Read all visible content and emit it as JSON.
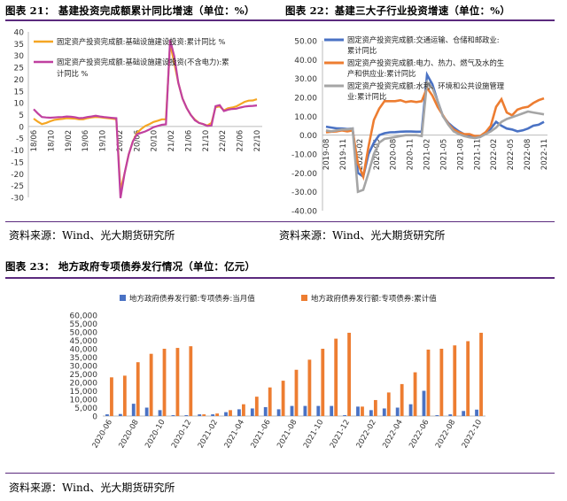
{
  "headers": {
    "fig21": "图表 21： 基建投资完成额累计同比增速（单位：%）",
    "fig22": "图表 22：基建三大子行业投资增速（单位：%）",
    "fig23": "图表 23： 地方政府专项债券发行情况（单位：亿元）"
  },
  "sources": {
    "s1": "资料来源：Wind、光大期货研究所",
    "s2": "资料来源：Wind、光大期货研究所",
    "s3": "资料来源：Wind、光大期货研究所"
  },
  "colors": {
    "orange": "#f5a623",
    "magenta": "#c040a0",
    "blue": "#4a72c4",
    "orange2": "#ed7d31",
    "gray": "#a5a5a5",
    "rule": "#5b2a7e"
  },
  "chart_data": [
    {
      "id": "c21",
      "type": "line",
      "ylim": [
        -30,
        40
      ],
      "yticks": [
        -30,
        -25,
        -20,
        -15,
        -10,
        -5,
        0,
        5,
        10,
        15,
        20,
        25,
        30,
        35,
        40
      ],
      "xticks": [
        "18/06",
        "18/10",
        "19/02",
        "19/06",
        "19/10",
        "20/02",
        "20/06",
        "20/10",
        "21/02",
        "21/06",
        "21/10",
        "22/02",
        "22/06",
        "22/10"
      ],
      "series": [
        {
          "name": "固定资产投资完成额:基础设施建设投资:累计同比 %",
          "color": "#f5a623",
          "values": [
            3.3,
            2.0,
            1.0,
            1.5,
            2.2,
            2.8,
            3.0,
            3.2,
            3.5,
            3.4,
            3.3,
            3.0,
            3.0,
            3.5,
            3.8,
            4.0,
            3.9,
            3.7,
            3.5,
            3.3,
            3.0,
            -26.9,
            -19.7,
            -11.8,
            -6.3,
            -2.7,
            -1.1,
            0.2,
            1.0,
            1.9,
            2.4,
            3.0,
            3.0,
            35.0,
            26.9,
            18.4,
            11.8,
            7.8,
            4.9,
            2.9,
            1.5,
            1.0,
            0.4,
            1.5,
            8.1,
            8.5,
            6.8,
            7.7,
            8.0,
            8.5,
            9.4,
            10.4,
            10.9,
            11.0,
            11.5
          ]
        },
        {
          "name": "固定资产投资完成额:基础设施建设投资(不含电力):累计同比 %",
          "color": "#c040a0",
          "values": [
            7.3,
            5.5,
            4.0,
            3.8,
            3.7,
            3.8,
            3.9,
            4.0,
            4.2,
            4.1,
            3.9,
            3.5,
            3.6,
            4.0,
            4.2,
            4.5,
            4.2,
            4.0,
            3.8,
            3.6,
            3.5,
            -30.3,
            -19.7,
            -11.8,
            -6.3,
            -3.3,
            -2.7,
            -2.1,
            -1.3,
            -0.3,
            0.2,
            0.7,
            0.9,
            36.6,
            29.7,
            18.4,
            11.8,
            7.8,
            4.9,
            2.6,
            1.5,
            1.0,
            0.2,
            0.4,
            8.6,
            9.0,
            6.5,
            7.1,
            7.4,
            7.5,
            8.0,
            8.4,
            8.6,
            8.7,
            8.9
          ]
        }
      ]
    },
    {
      "id": "c22",
      "type": "line",
      "ylim": [
        -40,
        50
      ],
      "yticks": [
        "50.00",
        "40.00",
        "30.00",
        "20.00",
        "10.00",
        "0.00",
        "-10.00",
        "-20.00",
        "-30.00",
        "-40.00"
      ],
      "xticks": [
        "2019-08",
        "2019-11",
        "2020-02",
        "2020-05",
        "2020-08",
        "2020-11",
        "2021-02",
        "2021-05",
        "2021-08",
        "2021-11",
        "2022-02",
        "2022-05",
        "2022-08",
        "2022-11"
      ],
      "series": [
        {
          "name": "固定资产投资完成额:交通运输、仓储和邮政业:累计同比",
          "color": "#4a72c4",
          "values": [
            4.5,
            4.0,
            3.6,
            3.5,
            3.2,
            3.5,
            -20.0,
            -22.0,
            -10.0,
            -4.0,
            0.0,
            1.0,
            1.5,
            1.6,
            1.8,
            1.9,
            1.9,
            1.8,
            1.8,
            32.0,
            27.0,
            18.0,
            10.0,
            6.5,
            4.0,
            2.0,
            0.5,
            -0.3,
            -1.5,
            -1.0,
            1.0,
            3.5,
            7.0,
            5.0,
            3.5,
            3.0,
            2.0,
            2.5,
            3.5,
            5.0,
            5.5,
            7.0
          ]
        },
        {
          "name": "固定资产投资完成额:电力、热力、燃气及水的生产和供应业:累计同比",
          "color": "#ed7d31",
          "values": [
            1.5,
            1.8,
            2.0,
            2.5,
            2.0,
            2.5,
            -15.0,
            -22.0,
            -6.0,
            8.0,
            14.0,
            18.0,
            18.0,
            18.0,
            18.5,
            17.5,
            18.0,
            17.5,
            18.0,
            25.0,
            21.0,
            15.0,
            10.5,
            6.0,
            3.0,
            1.5,
            0.5,
            0.5,
            -0.5,
            -0.5,
            1.5,
            5.0,
            15.0,
            19.0,
            12.0,
            10.5,
            13.5,
            14.5,
            15.0,
            17.0,
            18.5,
            19.5
          ]
        },
        {
          "name": "固定资产投资完成额:水利、环境和公共设施管理业:累计同比",
          "color": "#a5a5a5",
          "values": [
            2.5,
            2.0,
            2.5,
            3.0,
            3.0,
            3.5,
            -30.0,
            -29.0,
            -20.0,
            -10.0,
            -4.0,
            -2.0,
            -1.5,
            -1.0,
            -0.5,
            0.0,
            0.0,
            0.0,
            -0.5,
            28.0,
            25.0,
            18.0,
            10.0,
            5.5,
            2.0,
            0.5,
            -0.5,
            -1.2,
            -1.5,
            -1.0,
            0.5,
            2.0,
            4.0,
            7.0,
            8.5,
            9.5,
            10.5,
            11.5,
            12.5,
            12.0,
            11.5,
            11.0
          ]
        }
      ]
    },
    {
      "id": "c23",
      "type": "bar",
      "ylim": [
        0,
        60000
      ],
      "yticks": [
        "0",
        "5,000",
        "10,000",
        "15,000",
        "20,000",
        "25,000",
        "30,000",
        "35,000",
        "40,000",
        "45,000",
        "50,000",
        "55,000",
        "60,000"
      ],
      "xticks": [
        "2020-06",
        "2020-08",
        "2020-10",
        "2020-12",
        "2021-02",
        "2021-04",
        "2021-06",
        "2021-08",
        "2021-10",
        "2021-12",
        "2022-02",
        "2022-04",
        "2022-06",
        "2022-08",
        "2022-10"
      ],
      "categories": [
        "2020-06",
        "2020-07",
        "2020-08",
        "2020-09",
        "2020-10",
        "2020-11",
        "2020-12",
        "2021-01",
        "2021-02",
        "2021-03",
        "2021-04",
        "2021-05",
        "2021-06",
        "2021-07",
        "2021-08",
        "2021-09",
        "2021-10",
        "2021-11",
        "2021-12",
        "2022-01",
        "2022-02",
        "2022-03",
        "2022-04",
        "2022-05",
        "2022-06",
        "2022-07",
        "2022-08",
        "2022-09",
        "2022-10"
      ],
      "series": [
        {
          "name": "地方政府债券发行额:专项债券:当月值",
          "color": "#4a72c4",
          "values": [
            1000,
            1200,
            7300,
            5000,
            3500,
            500,
            500,
            1000,
            1000,
            2300,
            4000,
            4500,
            5300,
            4000,
            6000,
            6000,
            6000,
            6000,
            500,
            5600,
            3500,
            4500,
            5000,
            7000,
            15000,
            500,
            1000,
            3000,
            3800
          ]
        },
        {
          "name": "地方政府债券发行额:专项债券:累计值",
          "color": "#ed7d31",
          "values": [
            23000,
            24000,
            32000,
            37000,
            40000,
            40500,
            41500,
            1000,
            1500,
            3500,
            7000,
            11500,
            17000,
            21000,
            27500,
            33500,
            40000,
            46000,
            49500,
            5600,
            9500,
            14000,
            19000,
            26000,
            39500,
            40000,
            42000,
            44500,
            49500
          ]
        }
      ]
    }
  ]
}
